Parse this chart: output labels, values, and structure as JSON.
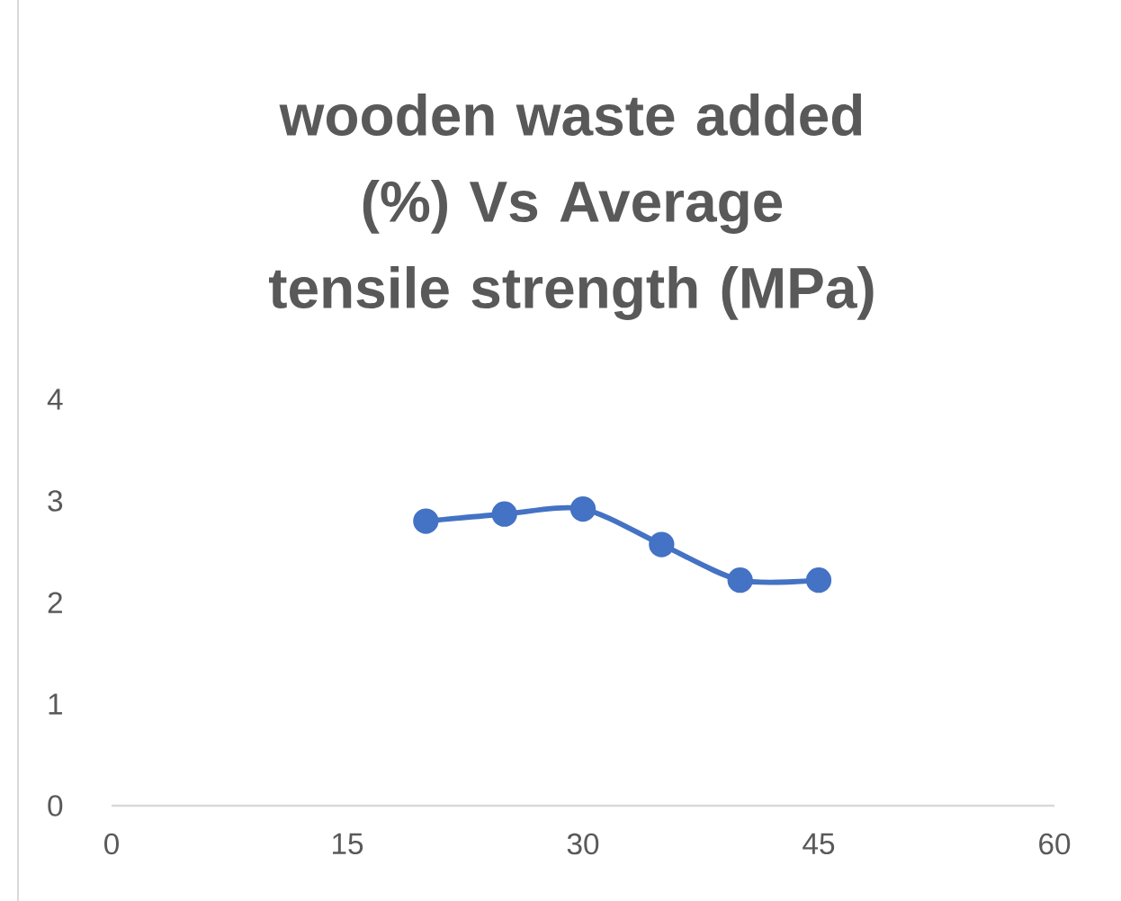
{
  "chart_data": {
    "type": "line",
    "title": "wooden waste added (%) Vs Average tensile strength (MPa)",
    "x": [
      20,
      25,
      30,
      35,
      40,
      45
    ],
    "series": [
      {
        "color": "#4472c4",
        "values": [
          2.8,
          2.87,
          2.92,
          2.57,
          2.22,
          2.22
        ]
      }
    ],
    "xlim": [
      0,
      60
    ],
    "xticks": [
      0,
      15,
      30,
      45,
      60
    ],
    "ylim": [
      0,
      4
    ],
    "yticks": [
      0,
      1,
      2,
      3,
      4
    ],
    "grid": false,
    "marker": "circle",
    "line_style": "solid"
  }
}
